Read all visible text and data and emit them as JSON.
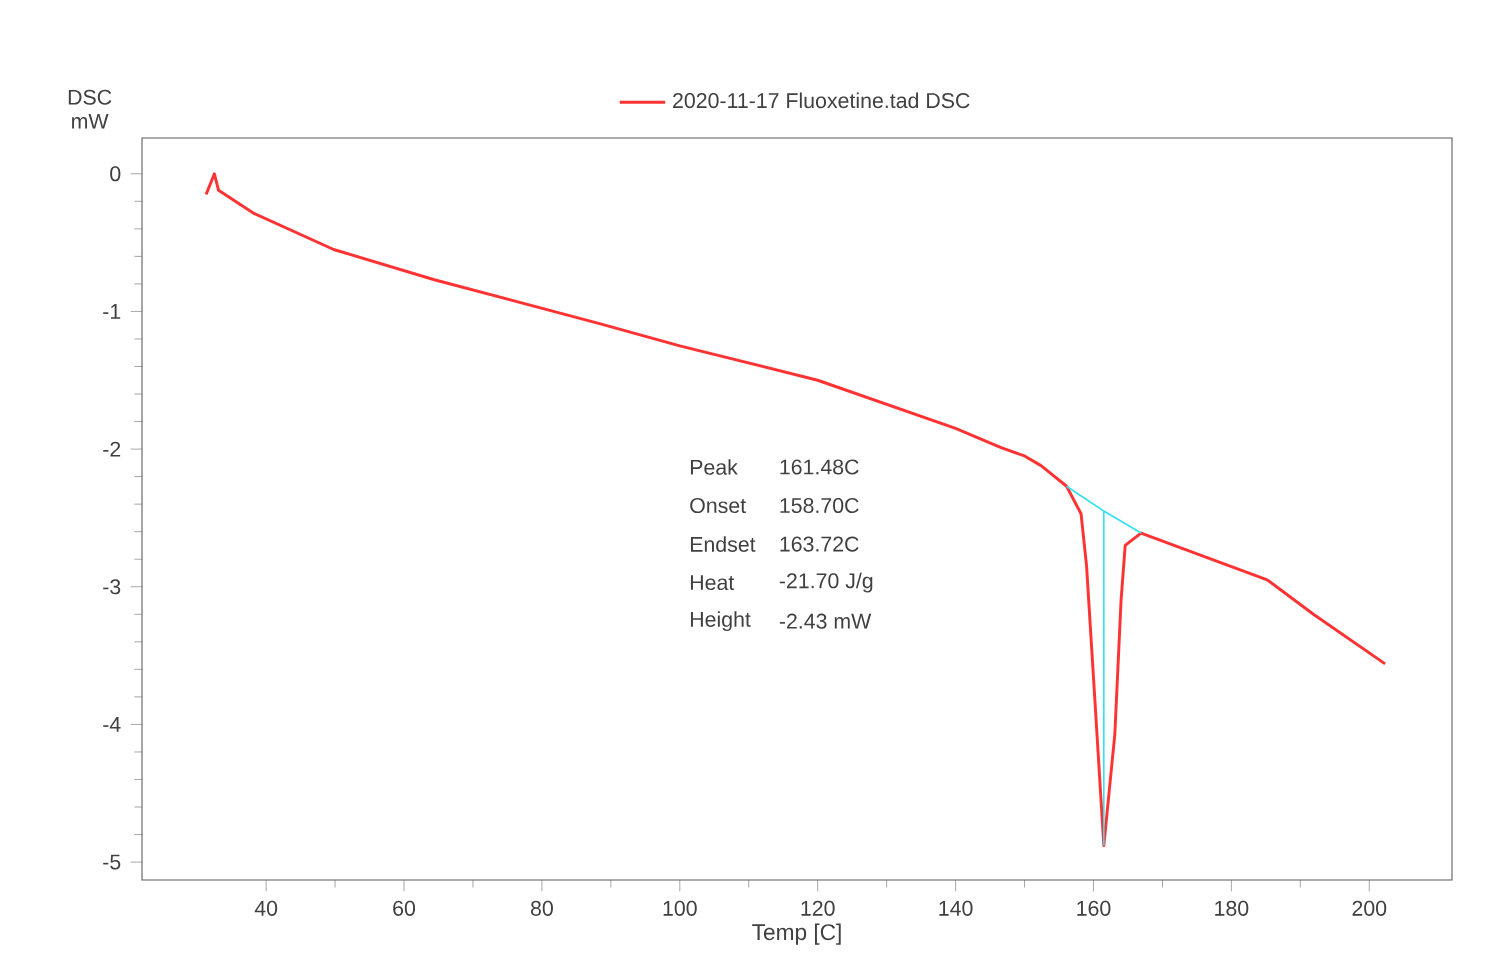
{
  "chart_data": {
    "type": "line",
    "xlabel": "Temp  [C]",
    "ylabel": "DSC mW",
    "legend": "top",
    "xlim": [
      22,
      212
    ],
    "ylim": [
      -5.13,
      0.26
    ],
    "xticks": [
      40,
      60,
      80,
      100,
      120,
      140,
      160,
      180,
      200
    ],
    "yticks": [
      -5,
      -4,
      -3,
      -2,
      -1,
      0
    ],
    "series": [
      {
        "name": "2020-11-17 Fluoxetine.tad DSC",
        "color": "#ff3333",
        "x": [
          31.3,
          32.5,
          33.1,
          38.3,
          49.8,
          64.4,
          88.5,
          100,
          120,
          140,
          146.6,
          150,
          152.4,
          156.1,
          158.2,
          159,
          160.2,
          161.5,
          163.1,
          164,
          164.6,
          166.9,
          185.2,
          191.9,
          202.3
        ],
        "values": [
          -0.15,
          0,
          -0.12,
          -0.29,
          -0.55,
          -0.77,
          -1.09,
          -1.25,
          -1.5,
          -1.85,
          -1.99,
          -2.05,
          -2.12,
          -2.27,
          -2.47,
          -2.85,
          -3.82,
          -4.88,
          -4.07,
          -3.1,
          -2.7,
          -2.61,
          -2.95,
          -3.2,
          -3.56
        ]
      },
      {
        "color": "#33e0f0",
        "x": [
          156.1,
          161.5,
          166.9
        ],
        "values": [
          -2.27,
          -2.45,
          -2.61
        ]
      },
      {
        "color": "#33e0f0",
        "x": [
          161.5,
          161.5
        ],
        "values": [
          -2.45,
          -4.88
        ]
      }
    ],
    "annotations": [
      "Peak",
      "161.48C",
      "Onset",
      "158.70C",
      "Endset",
      "163.72C",
      "Heat",
      "-21.70 J/g",
      "Height",
      "-2.43 mW"
    ]
  }
}
